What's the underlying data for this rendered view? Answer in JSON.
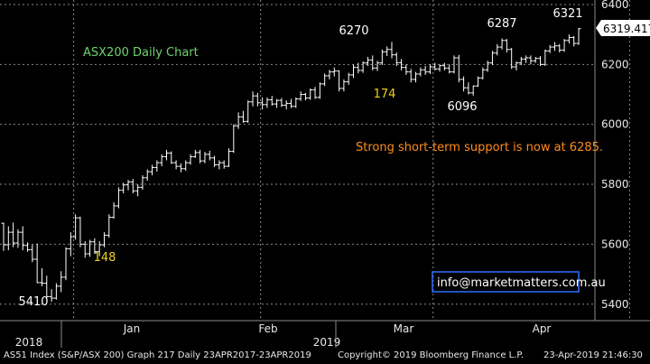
{
  "chart_data": {
    "type": "ohlc",
    "title": "ASX200 Daily Chart",
    "annotation": "Strong short-term support is now at 6285.",
    "contact": "info@marketmatters.com.au",
    "last_price": "6319.417",
    "y_ticks": [
      5400,
      5600,
      5800,
      6000,
      6200,
      6400
    ],
    "ylim": [
      5345,
      6415
    ],
    "x_month_labels": [
      "Jan",
      "Feb",
      "Mar",
      "Apr"
    ],
    "x_year_labels": [
      "2018",
      "2019"
    ],
    "point_labels": [
      {
        "text": "5410",
        "value": 5410,
        "bar": 11
      },
      {
        "text": "148",
        "value": 148,
        "bar": 24
      },
      {
        "text": "6270",
        "value": 6270,
        "bar": 98
      },
      {
        "text": "174",
        "value": 174,
        "bar": 105
      },
      {
        "text": "6096",
        "value": 6096,
        "bar": 123
      },
      {
        "text": "6287",
        "value": 6287,
        "bar": 134
      },
      {
        "text": "6321",
        "value": 6321,
        "bar": 157
      }
    ],
    "colors": {
      "bars": "#ffffff",
      "grid": "#8a8a8a",
      "title": "#6fd46f",
      "highlight": "#f0d020",
      "annotation": "#ff8c1a",
      "contact_border": "#2f6fff"
    },
    "ohlc": [
      [
        5670,
        5672,
        5578,
        5598
      ],
      [
        5598,
        5660,
        5580,
        5640
      ],
      [
        5640,
        5672,
        5590,
        5604
      ],
      [
        5604,
        5650,
        5588,
        5640
      ],
      [
        5640,
        5660,
        5580,
        5596
      ],
      [
        5596,
        5606,
        5575,
        5582
      ],
      [
        5582,
        5598,
        5540,
        5550
      ],
      [
        5550,
        5602,
        5470,
        5472
      ],
      [
        5472,
        5520,
        5460,
        5470
      ],
      [
        5470,
        5495,
        5420,
        5425
      ],
      [
        5425,
        5450,
        5408,
        5420
      ],
      [
        5420,
        5470,
        5415,
        5460
      ],
      [
        5460,
        5510,
        5440,
        5490
      ],
      [
        5490,
        5590,
        5480,
        5585
      ],
      [
        5585,
        5640,
        5560,
        5625
      ],
      [
        5625,
        5700,
        5615,
        5688
      ],
      [
        5688,
        5692,
        5590,
        5600
      ],
      [
        5600,
        5610,
        5555,
        5568
      ],
      [
        5568,
        5615,
        5558,
        5608
      ],
      [
        5608,
        5620,
        5568,
        5575
      ],
      [
        5575,
        5610,
        5560,
        5598
      ],
      [
        5598,
        5640,
        5590,
        5630
      ],
      [
        5630,
        5700,
        5622,
        5690
      ],
      [
        5690,
        5740,
        5685,
        5728
      ],
      [
        5728,
        5790,
        5720,
        5780
      ],
      [
        5780,
        5805,
        5770,
        5798
      ],
      [
        5798,
        5815,
        5780,
        5808
      ],
      [
        5808,
        5818,
        5770,
        5778
      ],
      [
        5778,
        5800,
        5760,
        5790
      ],
      [
        5790,
        5830,
        5782,
        5822
      ],
      [
        5822,
        5850,
        5812,
        5842
      ],
      [
        5842,
        5865,
        5830,
        5856
      ],
      [
        5856,
        5880,
        5842,
        5872
      ],
      [
        5872,
        5900,
        5860,
        5892
      ],
      [
        5892,
        5915,
        5880,
        5904
      ],
      [
        5904,
        5910,
        5868,
        5872
      ],
      [
        5872,
        5880,
        5850,
        5860
      ],
      [
        5860,
        5870,
        5840,
        5852
      ],
      [
        5852,
        5880,
        5845,
        5872
      ],
      [
        5872,
        5900,
        5865,
        5892
      ],
      [
        5892,
        5915,
        5888,
        5906
      ],
      [
        5906,
        5915,
        5870,
        5878
      ],
      [
        5878,
        5908,
        5870,
        5900
      ],
      [
        5900,
        5912,
        5880,
        5888
      ],
      [
        5888,
        5895,
        5858,
        5865
      ],
      [
        5865,
        5880,
        5850,
        5872
      ],
      [
        5872,
        5880,
        5852,
        5860
      ],
      [
        5860,
        5920,
        5858,
        5910
      ],
      [
        5910,
        6000,
        5905,
        5995
      ],
      [
        5995,
        6040,
        5985,
        6025
      ],
      [
        6025,
        6045,
        6005,
        6010
      ],
      [
        6010,
        6080,
        6005,
        6075
      ],
      [
        6075,
        6110,
        6060,
        6095
      ],
      [
        6095,
        6105,
        6060,
        6072
      ],
      [
        6072,
        6090,
        6050,
        6066
      ],
      [
        6066,
        6090,
        6055,
        6082
      ],
      [
        6082,
        6095,
        6062,
        6068
      ],
      [
        6068,
        6085,
        6055,
        6080
      ],
      [
        6080,
        6088,
        6058,
        6064
      ],
      [
        6064,
        6080,
        6050,
        6070
      ],
      [
        6070,
        6085,
        6055,
        6060
      ],
      [
        6060,
        6090,
        6055,
        6085
      ],
      [
        6085,
        6110,
        6078,
        6100
      ],
      [
        6100,
        6105,
        6080,
        6088
      ],
      [
        6088,
        6120,
        6082,
        6115
      ],
      [
        6115,
        6125,
        6085,
        6090
      ],
      [
        6090,
        6140,
        6085,
        6135
      ],
      [
        6135,
        6170,
        6128,
        6162
      ],
      [
        6162,
        6182,
        6150,
        6175
      ],
      [
        6175,
        6190,
        6160,
        6178
      ],
      [
        6178,
        6180,
        6110,
        6120
      ],
      [
        6120,
        6150,
        6110,
        6142
      ],
      [
        6142,
        6172,
        6132,
        6165
      ],
      [
        6165,
        6200,
        6155,
        6190
      ],
      [
        6190,
        6205,
        6170,
        6180
      ],
      [
        6180,
        6210,
        6172,
        6205
      ],
      [
        6205,
        6225,
        6195,
        6215
      ],
      [
        6215,
        6230,
        6180,
        6188
      ],
      [
        6188,
        6212,
        6178,
        6205
      ],
      [
        6205,
        6250,
        6198,
        6242
      ],
      [
        6242,
        6260,
        6228,
        6250
      ],
      [
        6250,
        6275,
        6220,
        6232
      ],
      [
        6232,
        6240,
        6195,
        6206
      ],
      [
        6206,
        6218,
        6180,
        6190
      ],
      [
        6190,
        6200,
        6165,
        6175
      ],
      [
        6175,
        6185,
        6140,
        6150
      ],
      [
        6150,
        6175,
        6140,
        6168
      ],
      [
        6168,
        6190,
        6160,
        6182
      ],
      [
        6182,
        6195,
        6165,
        6175
      ],
      [
        6175,
        6200,
        6168,
        6192
      ],
      [
        6192,
        6205,
        6180,
        6185
      ],
      [
        6185,
        6200,
        6176,
        6196
      ],
      [
        6196,
        6205,
        6180,
        6188
      ],
      [
        6188,
        6200,
        6170,
        6175
      ],
      [
        6175,
        6230,
        6170,
        6222
      ],
      [
        6222,
        6232,
        6140,
        6150
      ],
      [
        6150,
        6160,
        6110,
        6122
      ],
      [
        6122,
        6140,
        6100,
        6105
      ],
      [
        6105,
        6130,
        6096,
        6128
      ],
      [
        6128,
        6160,
        6125,
        6155
      ],
      [
        6155,
        6190,
        6150,
        6182
      ],
      [
        6182,
        6212,
        6175,
        6205
      ],
      [
        6205,
        6245,
        6198,
        6238
      ],
      [
        6238,
        6268,
        6230,
        6258
      ],
      [
        6258,
        6287,
        6250,
        6280
      ],
      [
        6280,
        6285,
        6240,
        6250
      ],
      [
        6250,
        6255,
        6185,
        6192
      ],
      [
        6192,
        6210,
        6180,
        6205
      ],
      [
        6205,
        6225,
        6198,
        6218
      ],
      [
        6218,
        6230,
        6205,
        6222
      ],
      [
        6222,
        6230,
        6200,
        6212
      ],
      [
        6212,
        6225,
        6205,
        6220
      ],
      [
        6220,
        6228,
        6195,
        6200
      ],
      [
        6200,
        6250,
        6195,
        6245
      ],
      [
        6245,
        6265,
        6238,
        6258
      ],
      [
        6258,
        6275,
        6245,
        6262
      ],
      [
        6262,
        6268,
        6240,
        6248
      ],
      [
        6248,
        6285,
        6242,
        6280
      ],
      [
        6280,
        6300,
        6270,
        6290
      ],
      [
        6290,
        6295,
        6260,
        6270
      ],
      [
        6270,
        6321,
        6265,
        6319.417
      ]
    ]
  }
}
